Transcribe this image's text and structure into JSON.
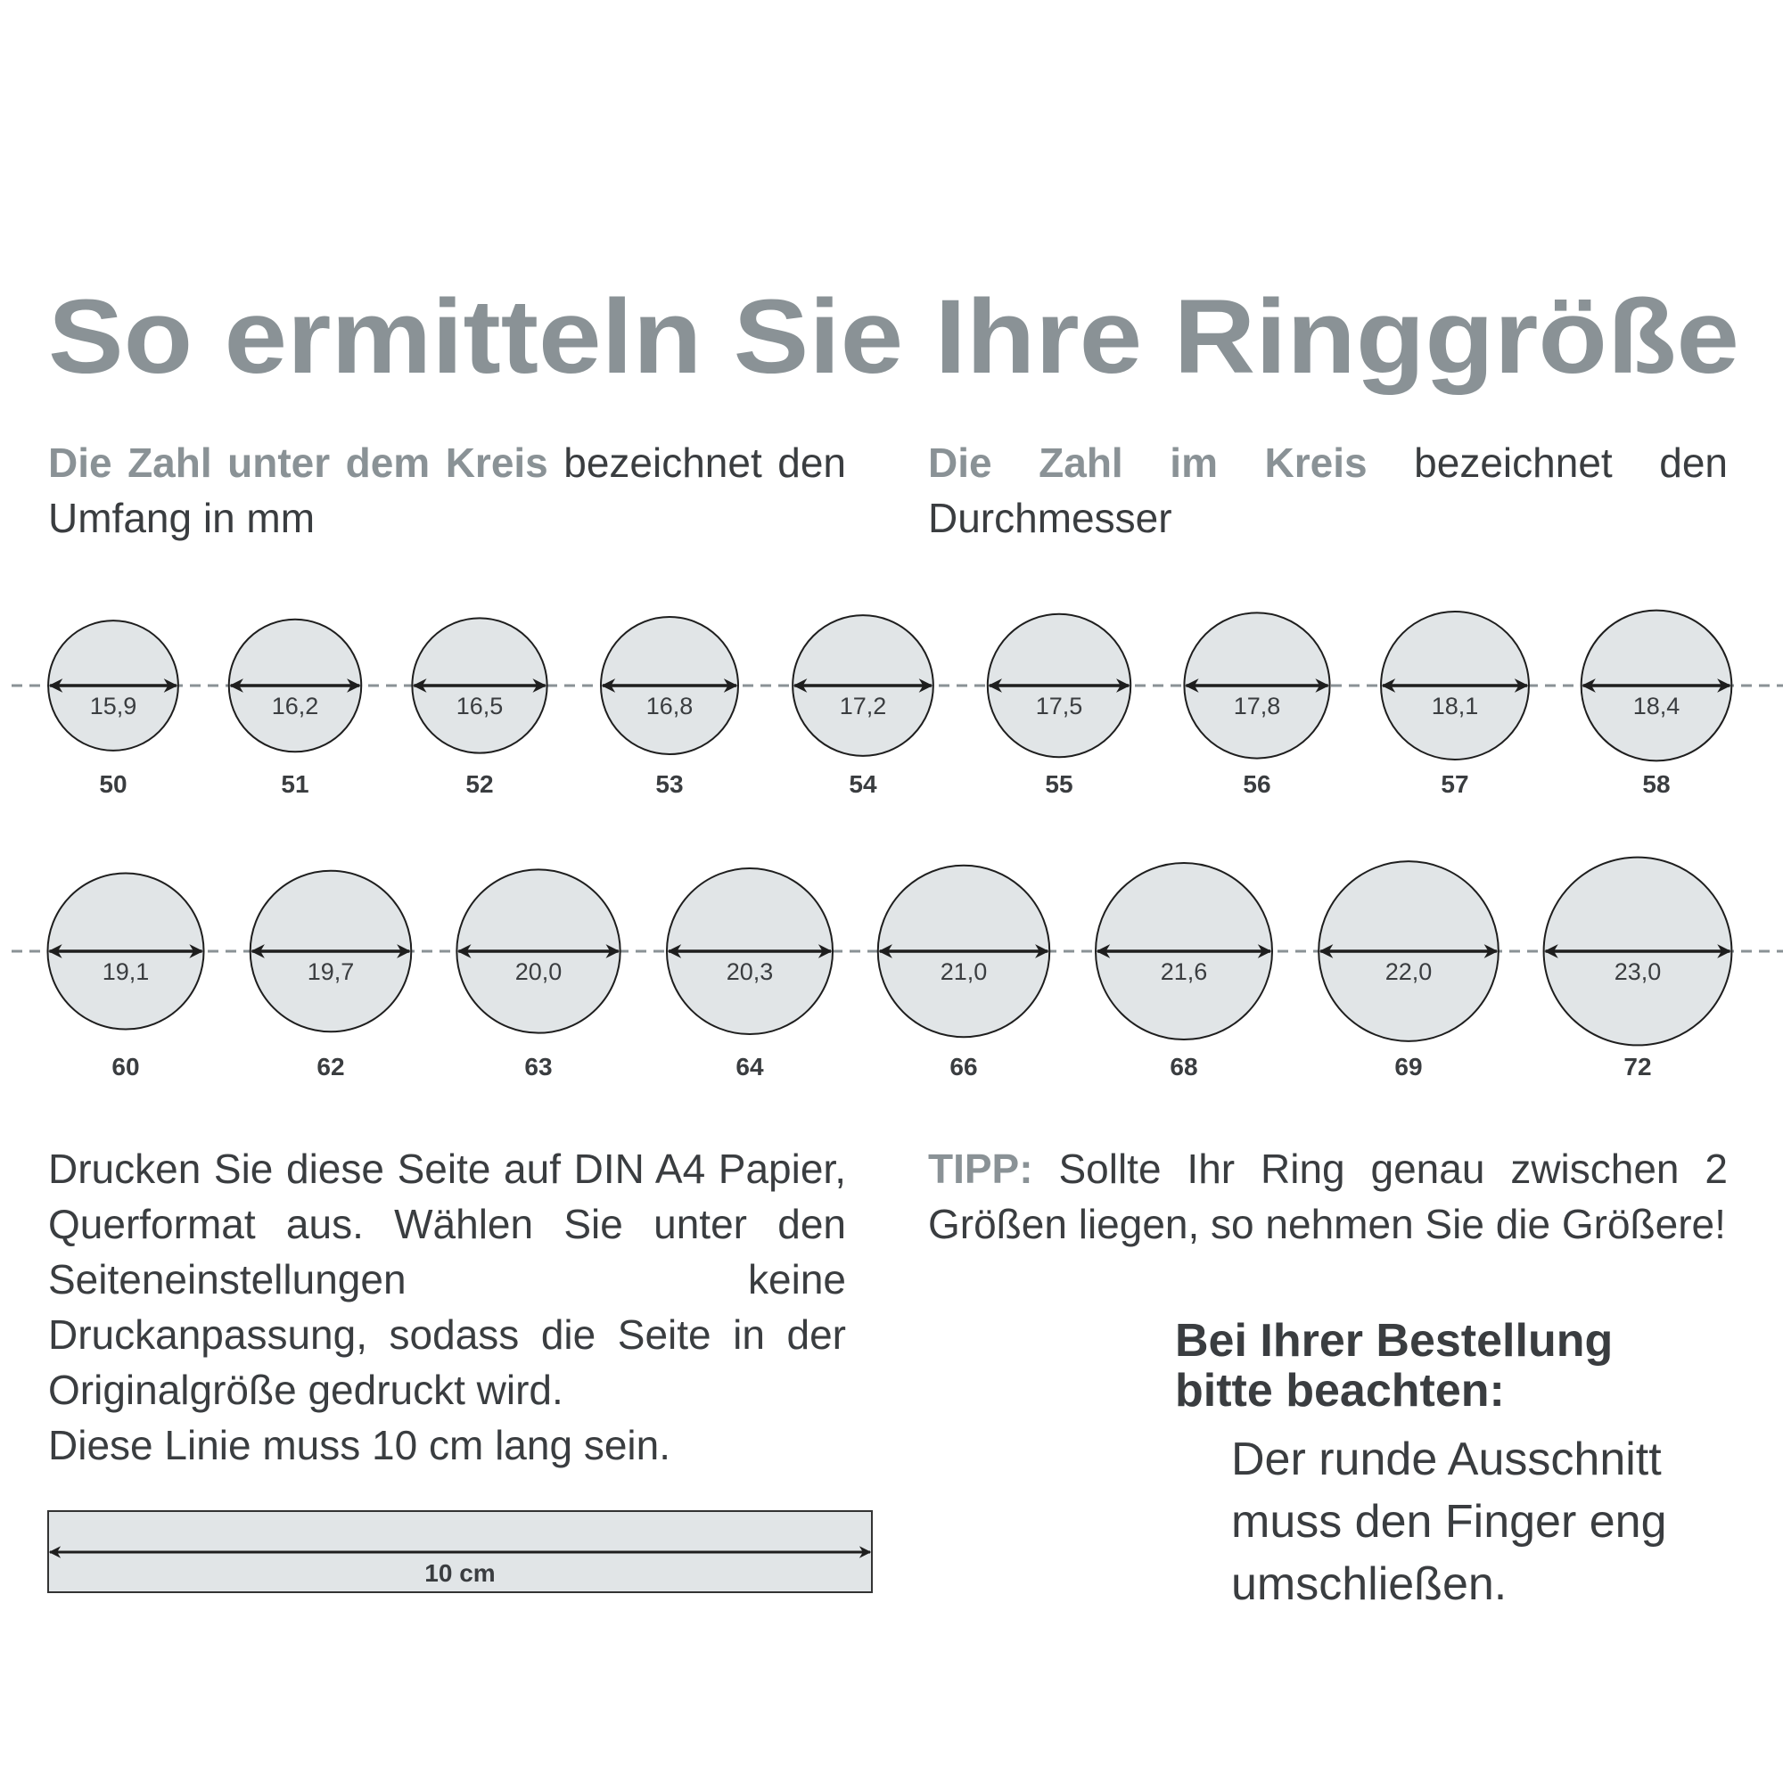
{
  "title": "So ermitteln Sie Ihre Ringgröße",
  "colors": {
    "heading_gray": "#8a9296",
    "text_dark": "#3a3d40",
    "circle_fill": "#e1e5e7"
  },
  "subheading_left": {
    "highlight": "Die Zahl unter dem Kreis",
    "rest": " bezeichnet den Umfang in mm"
  },
  "subheading_right": {
    "highlight": "Die Zahl im Kreis",
    "rest": " bezeichnet den Durchmesser"
  },
  "rings_row1": [
    {
      "diameter": "15,9",
      "size": "50"
    },
    {
      "diameter": "16,2",
      "size": "51"
    },
    {
      "diameter": "16,5",
      "size": "52"
    },
    {
      "diameter": "16,8",
      "size": "53"
    },
    {
      "diameter": "17,2",
      "size": "54"
    },
    {
      "diameter": "17,5",
      "size": "55"
    },
    {
      "diameter": "17,8",
      "size": "56"
    },
    {
      "diameter": "18,1",
      "size": "57"
    },
    {
      "diameter": "18,4",
      "size": "58"
    }
  ],
  "rings_row2": [
    {
      "diameter": "19,1",
      "size": "60"
    },
    {
      "diameter": "19,7",
      "size": "62"
    },
    {
      "diameter": "20,0",
      "size": "63"
    },
    {
      "diameter": "20,3",
      "size": "64"
    },
    {
      "diameter": "21,0",
      "size": "66"
    },
    {
      "diameter": "21,6",
      "size": "68"
    },
    {
      "diameter": "22,0",
      "size": "69"
    },
    {
      "diameter": "23,0",
      "size": "72"
    }
  ],
  "print_instructions": {
    "paragraph": "Drucken Sie diese Seite auf DIN A4 Papier, Querformat aus. Wählen Sie unter den Seiteneinstellungen keine Druckanpassung, sodass die Seite in der Originalgröße gedruckt wird.",
    "line_note": "Diese Linie muss 10 cm lang sein."
  },
  "ruler_label": "10 cm",
  "tip": {
    "label": "TIPP:",
    "text": " Sollte Ihr Ring genau zwischen 2 Größen liegen, so nehmen Sie die Größere!"
  },
  "order_note": {
    "heading_line1": "Bei Ihrer Bestellung",
    "heading_line2": "bitte beachten:",
    "body_lines": [
      "Der runde Ausschnitt",
      "muss den Finger eng",
      "umschließen."
    ]
  }
}
